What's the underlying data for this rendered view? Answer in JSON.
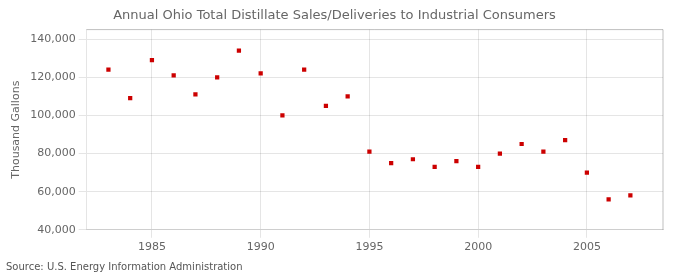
{
  "chart_data": {
    "type": "scatter",
    "title": "Annual Ohio Total Distillate Sales/Deliveries to Industrial Consumers",
    "ylabel": "Thousand Gallons",
    "annotation": "Source: U.S. Energy Information Administration",
    "x": [
      1983,
      1984,
      1985,
      1986,
      1987,
      1988,
      1989,
      1990,
      1991,
      1992,
      1993,
      1994,
      1995,
      1996,
      1997,
      1998,
      1999,
      2000,
      2001,
      2002,
      2003,
      2004,
      2005,
      2006,
      2007
    ],
    "values": [
      124000,
      109000,
      129000,
      121000,
      111000,
      120000,
      134000,
      122000,
      100000,
      124000,
      105000,
      110000,
      81000,
      75000,
      77000,
      73000,
      76000,
      73000,
      80000,
      85000,
      81000,
      87000,
      70000,
      56000,
      58000
    ],
    "color": "#cc0000",
    "marker": "square",
    "xlim": [
      1982,
      2008.5
    ],
    "xticks": [
      1985,
      1990,
      1995,
      2000,
      2005
    ],
    "ylim": [
      40000,
      145000
    ],
    "yticks": [
      {
        "value": 40000,
        "label": "40,000"
      },
      {
        "value": 60000,
        "label": "60,000"
      },
      {
        "value": 80000,
        "label": "80,000"
      },
      {
        "value": 100000,
        "label": "100,000"
      },
      {
        "value": 120000,
        "label": "120,000"
      },
      {
        "value": 140000,
        "label": "140,000"
      }
    ],
    "grid": true
  }
}
